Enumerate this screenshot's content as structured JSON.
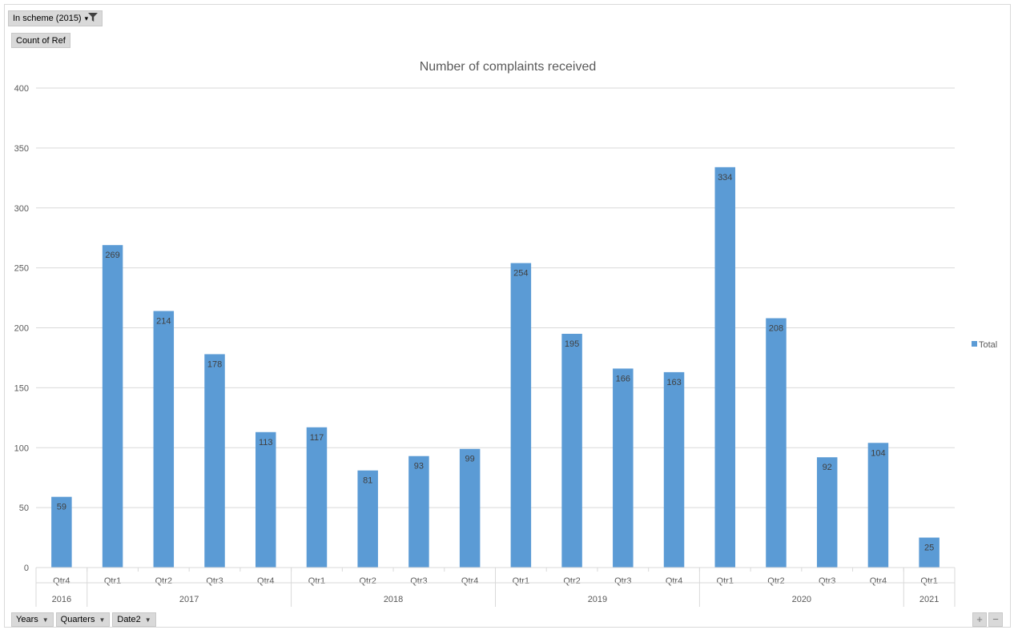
{
  "filter": {
    "label": "In scheme (2015)",
    "icon": "filter-icon"
  },
  "value_field": {
    "label": "Count of Ref"
  },
  "axis_fields": [
    {
      "label": "Years"
    },
    {
      "label": "Quarters"
    },
    {
      "label": "Date2"
    }
  ],
  "expand_controls": {
    "plus": "+",
    "minus": "−"
  },
  "chart_data": {
    "type": "bar",
    "title": "Number of complaints received",
    "categories": [
      "Qtr4",
      "Qtr1",
      "Qtr2",
      "Qtr3",
      "Qtr4",
      "Qtr1",
      "Qtr2",
      "Qtr3",
      "Qtr4",
      "Qtr1",
      "Qtr2",
      "Qtr3",
      "Qtr4",
      "Qtr1",
      "Qtr2",
      "Qtr3",
      "Qtr4",
      "Qtr1"
    ],
    "groups": [
      {
        "label": "2016",
        "count": 1
      },
      {
        "label": "2017",
        "count": 4
      },
      {
        "label": "2018",
        "count": 4
      },
      {
        "label": "2019",
        "count": 4
      },
      {
        "label": "2020",
        "count": 4
      },
      {
        "label": "2021",
        "count": 1
      }
    ],
    "series": [
      {
        "name": "Total",
        "values": [
          59,
          269,
          214,
          178,
          113,
          117,
          81,
          93,
          99,
          254,
          195,
          166,
          163,
          334,
          208,
          92,
          104,
          25
        ]
      }
    ],
    "ylim": [
      0,
      400
    ],
    "yticks": [
      0,
      50,
      100,
      150,
      200,
      250,
      300,
      350,
      400
    ],
    "grid": true,
    "legend": "right",
    "data_labels": true,
    "bar_color": "#5b9bd5"
  }
}
